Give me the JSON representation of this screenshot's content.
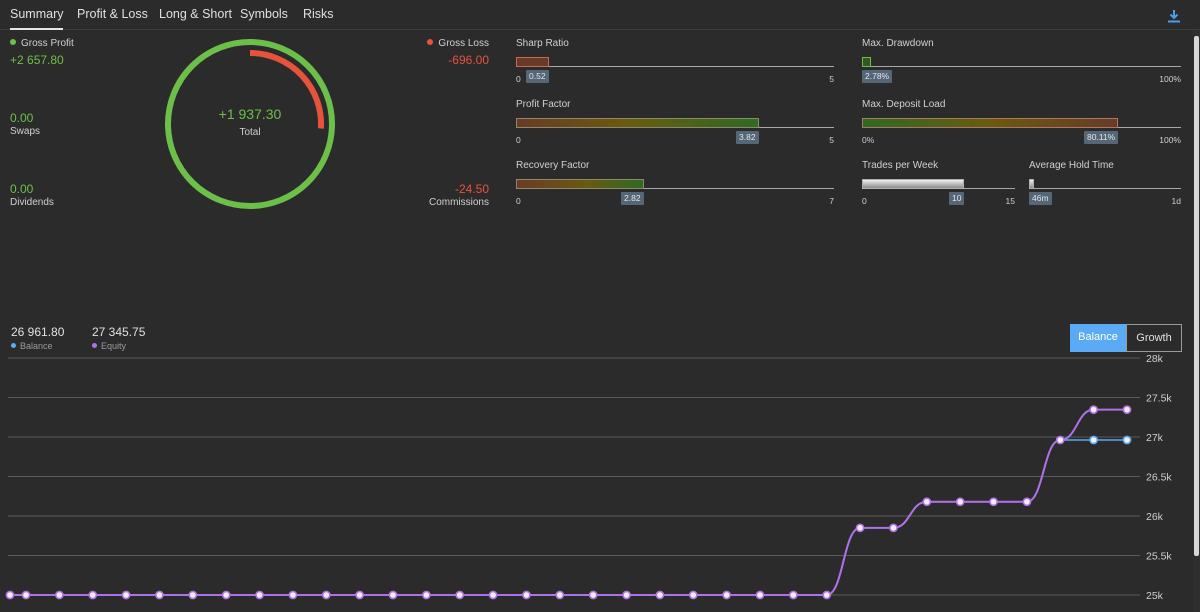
{
  "tabs": [
    {
      "label": "Summary",
      "active": true
    },
    {
      "label": "Profit & Loss",
      "active": false
    },
    {
      "label": "Long & Short",
      "active": false
    },
    {
      "label": "Symbols",
      "active": false
    },
    {
      "label": "Risks",
      "active": false
    }
  ],
  "toolbar": {
    "download_icon": "download-icon"
  },
  "summary": {
    "gross_profit_label": "Gross Profit",
    "gross_profit_value": "+2 657.80",
    "swaps_value": "0.00",
    "swaps_label": "Swaps",
    "dividends_value": "0.00",
    "dividends_label": "Dividends",
    "gross_loss_label": "Gross Loss",
    "gross_loss_value": "-696.00",
    "commissions_value": "-24.50",
    "commissions_label": "Commissions",
    "total_value": "+1 937.30",
    "total_label": "Total",
    "loss_share": 0.26,
    "colors": {
      "profit": "#6cc04a",
      "loss": "#e5533d"
    }
  },
  "gauges": {
    "sharp_ratio": {
      "title": "Sharp Ratio",
      "value": 0.52,
      "value_label": "0.52",
      "min_label": "0",
      "max_label": "5",
      "fraction": 0.104
    },
    "max_drawdown": {
      "title": "Max. Drawdown",
      "value_label": "2.78%",
      "min_label": "",
      "max_label": "100%",
      "fraction": 0.0278
    },
    "profit_factor": {
      "title": "Profit Factor",
      "value_label": "3.82",
      "min_label": "0",
      "max_label": "5",
      "fraction": 0.764
    },
    "max_deposit_load": {
      "title": "Max. Deposit Load",
      "value_label": "80.11%",
      "min_label": "0%",
      "max_label": "100%",
      "fraction": 0.8011
    },
    "recovery_factor": {
      "title": "Recovery Factor",
      "value_label": "2.82",
      "min_label": "0",
      "max_label": "7",
      "fraction": 0.403
    },
    "trades_per_week": {
      "title": "Trades per Week",
      "value_label": "10",
      "min_label": "0",
      "max_label": "15",
      "fraction": 0.667
    },
    "avg_hold_time": {
      "title": "Average Hold Time",
      "value_label": "46m",
      "min_label": "",
      "max_label": "1d",
      "fraction": 0.032
    }
  },
  "chart_header": {
    "balance_value": "26 961.80",
    "balance_label": "Balance",
    "equity_value": "27 345.75",
    "equity_label": "Equity",
    "toggle_balance": "Balance",
    "toggle_growth": "Growth",
    "colors": {
      "balance": "#5aaaf5",
      "equity": "#b070e8"
    }
  },
  "chart_data": {
    "type": "line",
    "title": "",
    "xlabel": "",
    "ylabel": "",
    "ylim": [
      25000,
      28000
    ],
    "y_ticks": [
      "25k",
      "25.5k",
      "26k",
      "26.5k",
      "27k",
      "27.5k",
      "28k"
    ],
    "y_tick_values": [
      25000,
      25500,
      26000,
      26500,
      27000,
      27500,
      28000
    ],
    "x": [
      0,
      1,
      2,
      3,
      4,
      5,
      6,
      7,
      8,
      9,
      10,
      11,
      12,
      13,
      14,
      15,
      16,
      17,
      18,
      19,
      20,
      21,
      22,
      23,
      24,
      25,
      26,
      27,
      28,
      29,
      30,
      31,
      32,
      33,
      34
    ],
    "series": [
      {
        "name": "Balance",
        "color": "#5aaaf5",
        "values": [
          25000,
          25000,
          25000,
          25000,
          25000,
          25000,
          25000,
          25000,
          25000,
          25000,
          25000,
          25000,
          25000,
          25000,
          25000,
          25000,
          25000,
          25000,
          25000,
          25000,
          25000,
          25000,
          25000,
          25000,
          25000,
          25000,
          25850,
          25850,
          26180,
          26180,
          26180,
          26180,
          26962,
          26962,
          26962
        ]
      },
      {
        "name": "Equity",
        "color": "#b070e8",
        "values": [
          25000,
          25000,
          25000,
          25000,
          25000,
          25000,
          25000,
          25000,
          25000,
          25000,
          25000,
          25000,
          25000,
          25000,
          25000,
          25000,
          25000,
          25000,
          25000,
          25000,
          25000,
          25000,
          25000,
          25000,
          25000,
          25000,
          25850,
          25850,
          26180,
          26180,
          26180,
          26180,
          26962,
          27346,
          27346
        ]
      }
    ],
    "grid": true,
    "legend": "top-left"
  }
}
